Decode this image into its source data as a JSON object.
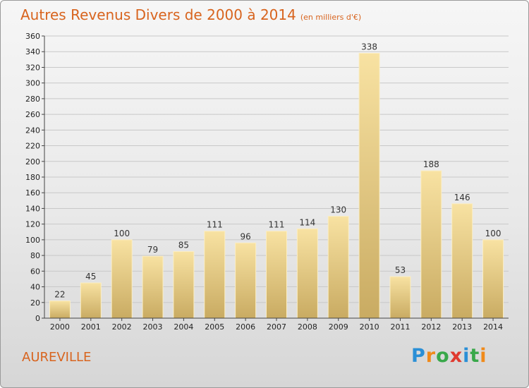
{
  "title": "Autres Revenus Divers de 2000 à 2014",
  "unit_note": "(en milliers d'€)",
  "commune": "AUREVILLE",
  "logo": {
    "text": "Proxiti",
    "letters": [
      {
        "ch": "P",
        "color": "#2a8fd6"
      },
      {
        "ch": "r",
        "color": "#f08a1a"
      },
      {
        "ch": "o",
        "color": "#39a84a"
      },
      {
        "ch": "x",
        "color": "#e03a2f"
      },
      {
        "ch": "i",
        "color": "#2a8fd6"
      },
      {
        "ch": "t",
        "color": "#39a84a"
      },
      {
        "ch": "i",
        "color": "#f08a1a"
      }
    ]
  },
  "colors": {
    "bar_light": "#f8e2a2",
    "bar_dark": "#c9ab62",
    "grid": "#c8c8c8",
    "axis": "#444444",
    "accent": "#d8641e"
  },
  "chart_data": {
    "type": "bar",
    "categories": [
      "2000",
      "2001",
      "2002",
      "2003",
      "2004",
      "2005",
      "2006",
      "2007",
      "2008",
      "2009",
      "2010",
      "2011",
      "2012",
      "2013",
      "2014"
    ],
    "values": [
      22,
      45,
      100,
      79,
      85,
      111,
      96,
      111,
      114,
      130,
      338,
      53,
      188,
      146,
      100
    ],
    "title": "Autres Revenus Divers de 2000 à 2014",
    "ylim": [
      0,
      360
    ],
    "yticks": [
      0,
      20,
      40,
      60,
      80,
      100,
      120,
      140,
      160,
      180,
      200,
      220,
      240,
      260,
      280,
      300,
      320,
      340,
      360
    ],
    "grid": "horizontal",
    "data_labels": true
  }
}
